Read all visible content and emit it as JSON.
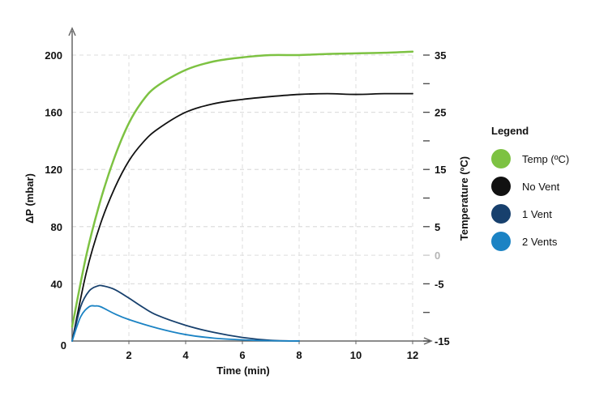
{
  "chart_data": {
    "type": "line",
    "title": "",
    "xlabel": "Time (min)",
    "ylabel": "ΔP (mbar)",
    "y2label": "Temperature (ºC)",
    "xlim": [
      0,
      12
    ],
    "ylim": [
      0,
      200
    ],
    "y2lim": [
      -15,
      35
    ],
    "x_ticks": [
      "2",
      "4",
      "6",
      "8",
      "10",
      "12"
    ],
    "y_ticks": [
      "0",
      "40",
      "80",
      "120",
      "160",
      "200"
    ],
    "y_ticks_values": [
      0,
      40,
      80,
      120,
      160,
      200
    ],
    "y2_ticks": [
      "-15",
      "-5",
      "0",
      "5",
      "15",
      "25",
      "35"
    ],
    "y2_ticks_values": [
      -15,
      -5,
      0,
      5,
      15,
      25,
      35
    ],
    "grid": true,
    "legend_title": "Legend",
    "legend_position": "right",
    "series": [
      {
        "name": "Temp (ºC)",
        "axis": "right",
        "color": "#7dc242",
        "x": [
          0,
          0.5,
          1,
          1.5,
          2,
          2.5,
          3,
          4,
          5,
          6,
          7,
          8,
          9,
          10,
          11,
          12
        ],
        "y": [
          -12.5,
          0,
          9.6,
          17.2,
          23.1,
          27.1,
          29.6,
          32.4,
          33.9,
          34.6,
          35,
          35,
          35.2,
          35.3,
          35.4,
          35.6
        ]
      },
      {
        "name": "No Vent",
        "axis": "left",
        "color": "#111111",
        "x": [
          0,
          0.5,
          1,
          1.5,
          2,
          2.5,
          3,
          4,
          5,
          6,
          7,
          8,
          9,
          10,
          11,
          12
        ],
        "y": [
          0,
          48,
          82,
          107,
          126,
          139,
          148,
          160,
          166,
          169,
          171,
          172.5,
          173,
          172.5,
          173,
          173
        ]
      },
      {
        "name": "1 Vent",
        "axis": "left",
        "color": "#17406d",
        "x": [
          0,
          0.3,
          0.6,
          0.9,
          1.1,
          1.5,
          2,
          2.5,
          3,
          4,
          5,
          6,
          7,
          8
        ],
        "y": [
          0,
          24,
          35,
          38.5,
          38.5,
          36,
          30,
          23.5,
          18,
          11,
          6,
          2.5,
          0.5,
          0
        ]
      },
      {
        "name": "2 Vents",
        "axis": "left",
        "color": "#1b83c4",
        "x": [
          0,
          0.3,
          0.6,
          0.8,
          1,
          1.5,
          2,
          3,
          4,
          5,
          6,
          7,
          8
        ],
        "y": [
          0,
          17,
          24,
          24.5,
          24,
          19,
          15,
          9,
          4.5,
          2,
          0.8,
          0.2,
          0
        ]
      }
    ]
  }
}
